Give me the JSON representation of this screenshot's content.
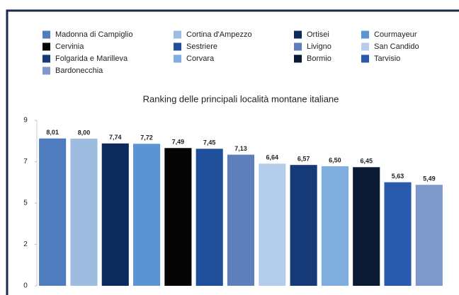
{
  "chart_data": {
    "type": "bar",
    "title": "Ranking delle principali località montane italiane",
    "categories": [
      "Madonna di Campiglio",
      "Cortina d'Ampezzo",
      "Ortisei",
      "Courmayeur",
      "Cervinia",
      "Sestriere",
      "Livigno",
      "San Candido",
      "Folgarida e Marilleva",
      "Corvara",
      "Bormio",
      "Tarvisio",
      "Bardonecchia"
    ],
    "values": [
      8.01,
      8.0,
      7.74,
      7.72,
      7.49,
      7.45,
      7.13,
      6.64,
      6.57,
      6.5,
      6.45,
      5.63,
      5.49
    ],
    "value_labels": [
      "8,01",
      "8,00",
      "7,74",
      "7,72",
      "7,49",
      "7,45",
      "7,13",
      "6,64",
      "6,57",
      "6,50",
      "6,45",
      "5,63",
      "5,49"
    ],
    "colors": [
      "#4f7bbf",
      "#9dbce0",
      "#0d2a5c",
      "#5b93d3",
      "#050505",
      "#1f4f9a",
      "#5e7fbc",
      "#b4cdea",
      "#163a78",
      "#7fadde",
      "#0b1a33",
      "#2a5aae",
      "#7e98cc"
    ],
    "ylim": [
      0,
      9
    ],
    "yticks": [
      0,
      {
        "value": 2.25,
        "label": "2"
      },
      {
        "value": 4.5,
        "label": "5"
      },
      {
        "value": 6.75,
        "label": "7"
      },
      9
    ]
  }
}
